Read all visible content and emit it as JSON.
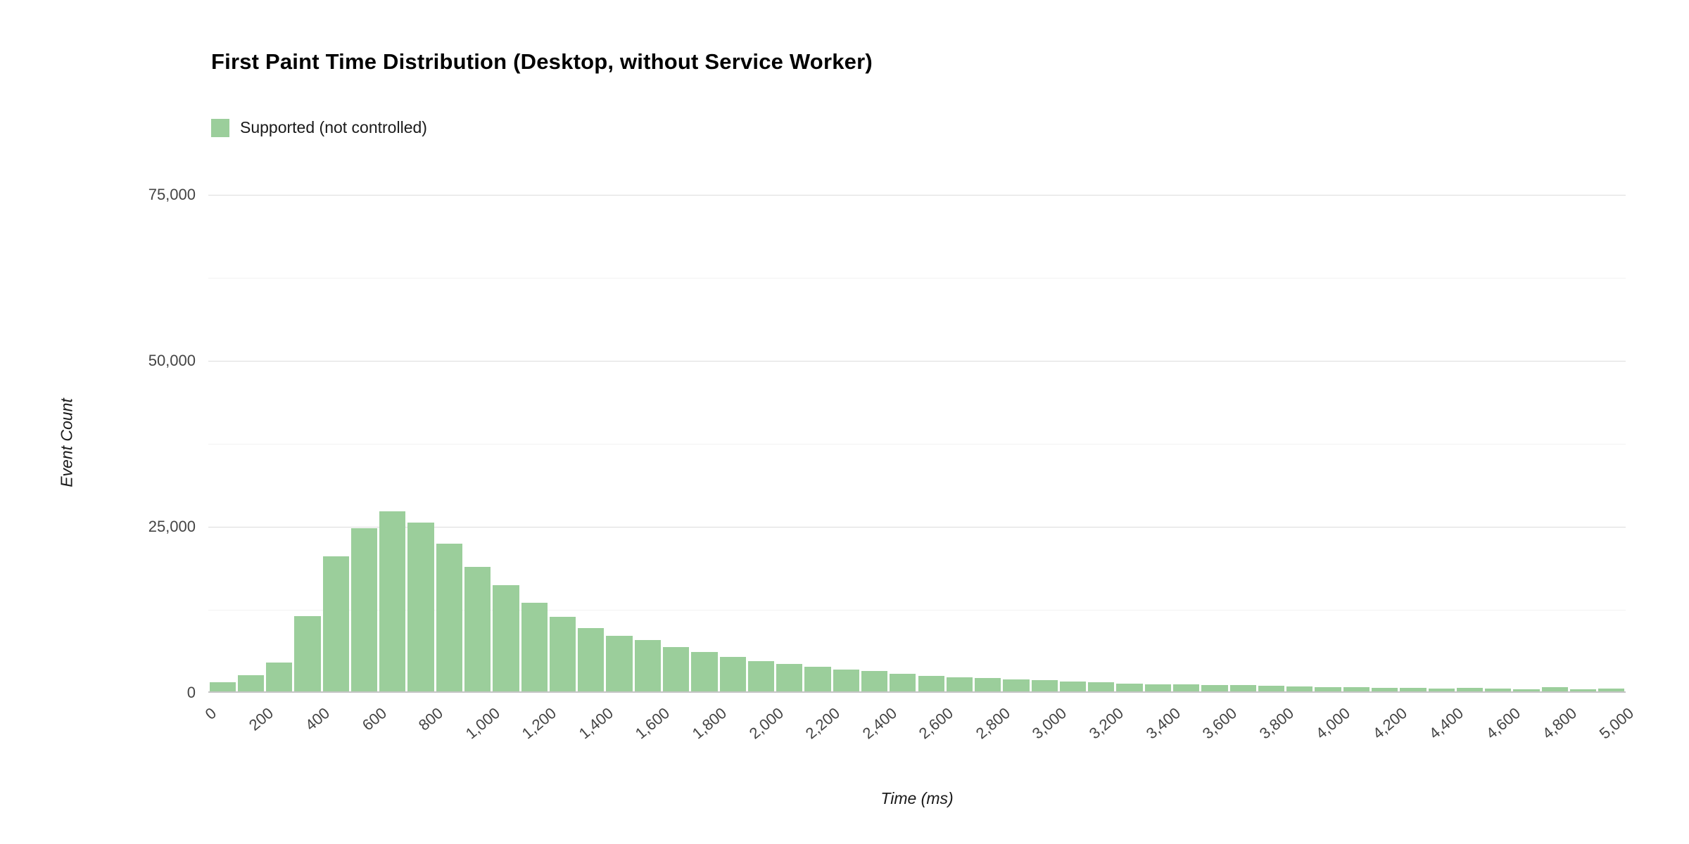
{
  "chart_data": {
    "type": "bar",
    "subtype": "histogram",
    "title": "First Paint Time Distribution (Desktop, without Service Worker)",
    "legend": [
      {
        "label": "Supported (not controlled)",
        "color": "#9bce9b"
      }
    ],
    "legend_position": "top-left",
    "xlabel": "Time (ms)",
    "ylabel": "Event Count",
    "grid": true,
    "x_range": [
      0,
      5000
    ],
    "x_tick_step": 200,
    "bin_width_ms": 100,
    "ylim": [
      0,
      75000
    ],
    "yticks": [
      0,
      25000,
      50000,
      75000
    ],
    "minor_yticks": [
      12500,
      37500,
      62500
    ],
    "values": [
      1600,
      2600,
      4600,
      11500,
      20500,
      24800,
      27300,
      25600,
      22500,
      19000,
      16200,
      13600,
      11400,
      9800,
      8600,
      7900,
      6900,
      6100,
      5400,
      4800,
      4300,
      3900,
      3500,
      3300,
      2900,
      2500,
      2300,
      2200,
      2000,
      1900,
      1700,
      1600,
      1400,
      1300,
      1300,
      1200,
      1200,
      1100,
      1000,
      900,
      800,
      700,
      700,
      600,
      700,
      600,
      500,
      800,
      500,
      600
    ]
  }
}
